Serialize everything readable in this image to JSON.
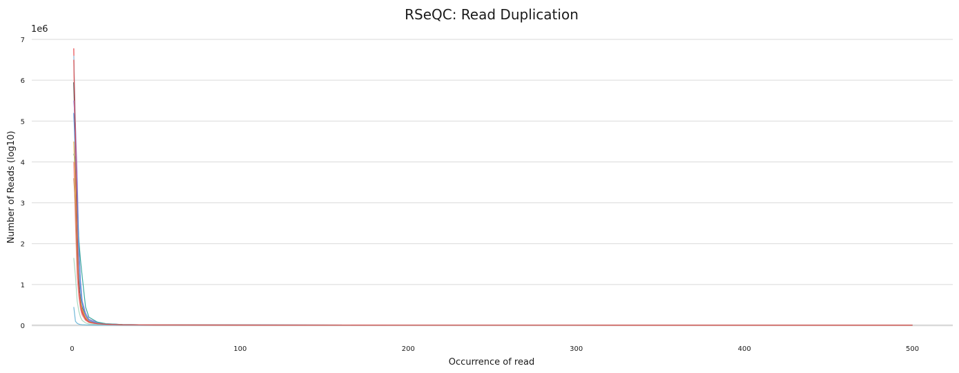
{
  "chart_data": {
    "type": "line",
    "title": "RSeQC: Read Duplication",
    "xlabel": "Occurrence of read",
    "ylabel": "Number of Reads (log10)",
    "y_offset_label": "1e6",
    "xlim": [
      -24,
      524
    ],
    "ylim": [
      0,
      7
    ],
    "x_ticks": [
      0,
      100,
      200,
      300,
      400,
      500
    ],
    "y_ticks": [
      0,
      1,
      2,
      3,
      4,
      5,
      6,
      7
    ],
    "grid": "horizontal",
    "legend": "none",
    "series": [
      {
        "color": "#e8464b",
        "x": [
          1,
          2,
          3,
          4,
          5,
          6,
          8,
          10,
          15,
          20,
          30,
          50,
          100,
          200,
          300,
          400,
          500
        ],
        "y": [
          6.78,
          3.7,
          1.8,
          0.95,
          0.55,
          0.35,
          0.18,
          0.1,
          0.05,
          0.03,
          0.015,
          0.01,
          0.008,
          0.006,
          0.005,
          0.004,
          0.004
        ]
      },
      {
        "color": "#2a3a3a",
        "x": [
          1,
          2,
          3,
          4,
          5,
          6,
          8,
          10,
          15,
          20,
          30,
          50,
          100,
          200,
          300,
          400,
          500
        ],
        "y": [
          5.95,
          4.3,
          2.2,
          1.2,
          0.7,
          0.45,
          0.2,
          0.12,
          0.06,
          0.035,
          0.02,
          0.012,
          0.009,
          0.007,
          0.006,
          0.005,
          0.005
        ]
      },
      {
        "color": "#8ec9e8",
        "x": [
          1,
          2,
          3,
          4,
          5,
          6,
          8,
          10,
          15,
          20,
          30,
          50,
          100,
          200,
          300,
          400,
          500
        ],
        "y": [
          6.6,
          5.0,
          2.5,
          1.4,
          0.8,
          0.5,
          0.25,
          0.13,
          0.06,
          0.035,
          0.02,
          0.012,
          0.009,
          0.007,
          0.006,
          0.005,
          0.005
        ]
      },
      {
        "color": "#9b7fd4",
        "x": [
          1,
          2,
          3,
          4,
          5,
          6,
          8,
          10,
          15,
          20,
          30,
          50,
          100,
          200,
          300,
          400,
          500
        ],
        "y": [
          5.5,
          4.9,
          3.7,
          2.0,
          1.1,
          0.6,
          0.3,
          0.15,
          0.07,
          0.04,
          0.02,
          0.012,
          0.009,
          0.007,
          0.006,
          0.005,
          0.005
        ]
      },
      {
        "color": "#3aa9a0",
        "x": [
          1,
          2,
          3,
          4,
          5,
          6,
          8,
          10,
          15,
          20,
          30,
          50,
          100,
          200,
          300,
          400,
          500
        ],
        "y": [
          4.2,
          4.0,
          3.0,
          2.1,
          1.6,
          1.2,
          0.45,
          0.2,
          0.08,
          0.04,
          0.02,
          0.012,
          0.009,
          0.007,
          0.006,
          0.005,
          0.005
        ]
      },
      {
        "color": "#e6b34f",
        "x": [
          1,
          2,
          3,
          4,
          5,
          6,
          8,
          10,
          15,
          20,
          30,
          50,
          100,
          200,
          300,
          400,
          500
        ],
        "y": [
          4.5,
          3.3,
          1.5,
          0.9,
          0.6,
          0.4,
          0.2,
          0.11,
          0.05,
          0.03,
          0.015,
          0.01,
          0.008,
          0.006,
          0.005,
          0.004,
          0.004
        ]
      },
      {
        "color": "#5b8fd9",
        "x": [
          1,
          2,
          3,
          4,
          5,
          6,
          8,
          10,
          15,
          20,
          30,
          50,
          100,
          200,
          300,
          400,
          500
        ],
        "y": [
          5.2,
          4.1,
          3.2,
          1.9,
          1.0,
          0.55,
          0.25,
          0.12,
          0.05,
          0.03,
          0.015,
          0.01,
          0.008,
          0.006,
          0.005,
          0.004,
          0.004
        ]
      },
      {
        "color": "#f28a8c",
        "x": [
          1,
          2,
          3,
          4,
          5,
          6,
          8,
          10,
          15,
          20,
          30,
          50,
          100,
          200,
          300,
          400,
          500
        ],
        "y": [
          4.0,
          2.5,
          1.2,
          0.7,
          0.4,
          0.25,
          0.12,
          0.07,
          0.03,
          0.02,
          0.01,
          0.008,
          0.006,
          0.005,
          0.004,
          0.004,
          0.004
        ]
      },
      {
        "color": "#a8d8c0",
        "x": [
          1,
          2,
          3,
          4,
          5,
          6,
          8,
          10,
          15,
          20,
          30,
          50,
          100,
          200,
          300,
          400,
          500
        ],
        "y": [
          1.65,
          1.2,
          0.6,
          0.35,
          0.2,
          0.12,
          0.06,
          0.035,
          0.02,
          0.012,
          0.008,
          0.006,
          0.005,
          0.004,
          0.004,
          0.004,
          0.004
        ]
      },
      {
        "color": "#6fb8d8",
        "x": [
          1,
          2,
          3,
          4,
          5,
          6,
          8,
          10,
          15,
          20,
          30,
          50,
          100,
          200,
          300,
          400,
          500
        ],
        "y": [
          0.45,
          0.1,
          0.05,
          0.03,
          0.02,
          0.015,
          0.01,
          0.008,
          0.006,
          0.005,
          0.004,
          0.004,
          0.004,
          0.004,
          0.004,
          0.004,
          0.004
        ]
      },
      {
        "color": "#c98a5a",
        "x": [
          1,
          2,
          3,
          4,
          5,
          6,
          8,
          10,
          15,
          20,
          30,
          50,
          100,
          200,
          300,
          400,
          500
        ],
        "y": [
          3.6,
          2.9,
          1.6,
          0.9,
          0.5,
          0.3,
          0.15,
          0.08,
          0.04,
          0.025,
          0.012,
          0.009,
          0.007,
          0.005,
          0.005,
          0.004,
          0.004
        ]
      },
      {
        "color": "#d95050",
        "x": [
          1,
          2,
          3,
          4,
          5,
          6,
          8,
          10,
          15,
          20,
          30,
          50,
          100,
          200,
          300,
          400,
          500
        ],
        "y": [
          6.5,
          4.6,
          2.4,
          0.95,
          0.5,
          0.3,
          0.15,
          0.08,
          0.04,
          0.025,
          0.012,
          0.009,
          0.007,
          0.005,
          0.005,
          0.004,
          0.004
        ]
      }
    ]
  }
}
